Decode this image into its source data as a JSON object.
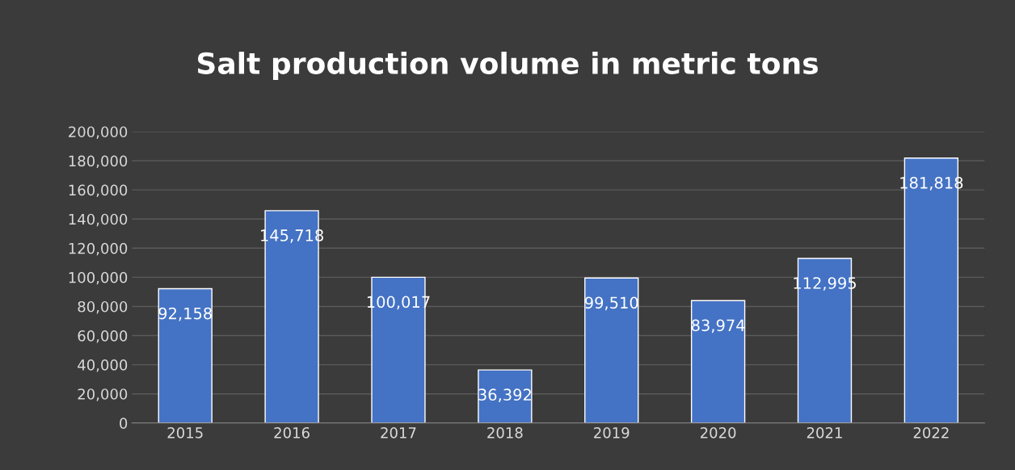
{
  "chart_data": {
    "type": "bar",
    "title": "Salt production volume in metric tons",
    "categories": [
      "2015",
      "2016",
      "2017",
      "2018",
      "2019",
      "2020",
      "2021",
      "2022"
    ],
    "values": [
      92158,
      145718,
      100017,
      36392,
      99510,
      83974,
      112995,
      181818
    ],
    "value_labels": [
      "92,158",
      "145,718",
      "100,017",
      "36,392",
      "99,510",
      "83,974",
      "112,995",
      "181,818"
    ],
    "color": "#4472c4",
    "ylim": [
      0,
      200000
    ],
    "yticks": [
      {
        "value": 0,
        "label": "0"
      },
      {
        "value": 20000,
        "label": "20,000"
      },
      {
        "value": 40000,
        "label": "40,000"
      },
      {
        "value": 60000,
        "label": "60,000"
      },
      {
        "value": 80000,
        "label": "80,000"
      },
      {
        "value": 100000,
        "label": "100,000"
      },
      {
        "value": 120000,
        "label": "120,000"
      },
      {
        "value": 140000,
        "label": "140,000"
      },
      {
        "value": 160000,
        "label": "160,000"
      },
      {
        "value": 180000,
        "label": "180,000"
      },
      {
        "value": 200000,
        "label": "200,000"
      }
    ],
    "grid": "y",
    "legend": false
  }
}
